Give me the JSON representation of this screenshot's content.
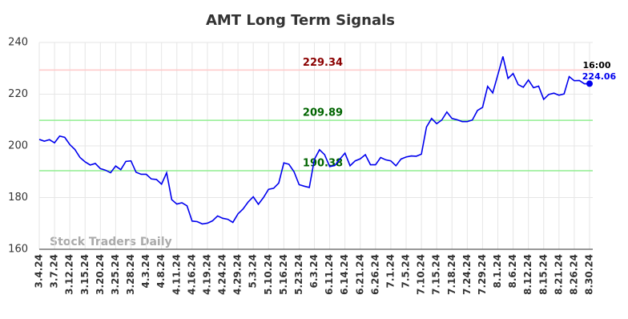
{
  "chart_data": {
    "type": "line",
    "title": "AMT Long Term Signals",
    "watermark": "Stock Traders Daily",
    "categories": [
      "3.4.24",
      null,
      null,
      "3.7.24",
      null,
      null,
      "3.12.24",
      null,
      null,
      "3.15.24",
      null,
      null,
      "3.20.24",
      null,
      null,
      "3.25.24",
      null,
      null,
      "3.28.24",
      null,
      null,
      "4.3.24",
      null,
      null,
      "4.8.24",
      null,
      null,
      "4.11.24",
      null,
      null,
      "4.16.24",
      null,
      null,
      "4.19.24",
      null,
      null,
      "4.24.24",
      null,
      null,
      "4.29.24",
      null,
      null,
      "5.3.24",
      null,
      null,
      "5.10.24",
      null,
      null,
      "5.16.24",
      null,
      null,
      "5.23.24",
      null,
      null,
      "6.3.24",
      null,
      null,
      "6.11.24",
      null,
      null,
      "6.14.24",
      null,
      null,
      "6.21.24",
      null,
      null,
      "6.26.24",
      null,
      null,
      "7.1.24",
      null,
      null,
      "7.5.24",
      null,
      null,
      "7.10.24",
      null,
      null,
      "7.15.24",
      null,
      null,
      "7.18.24",
      null,
      null,
      "7.24.24",
      null,
      null,
      "7.29.24",
      null,
      null,
      "8.1.24",
      null,
      null,
      "8.6.24",
      null,
      null,
      "8.12.24",
      null,
      null,
      "8.15.24",
      null,
      null,
      "8.21.24",
      null,
      null,
      "8.26.24",
      null,
      null,
      "8.30.24"
    ],
    "series": [
      {
        "name": "AMT",
        "color": "#0000ee",
        "values": [
          202.5,
          201.8,
          202.4,
          201.2,
          203.8,
          203.3,
          200.5,
          198.6,
          195.5,
          193.8,
          192.6,
          193.2,
          191.2,
          190.6,
          189.6,
          192.2,
          190.8,
          194.0,
          194.2,
          189.8,
          189.0,
          189.0,
          187.2,
          187.0,
          185.2,
          189.6,
          179.2,
          177.5,
          178.0,
          176.8,
          170.9,
          170.7,
          169.8,
          170.1,
          171.0,
          172.9,
          172.0,
          171.6,
          170.4,
          173.7,
          175.6,
          178.3,
          180.3,
          177.4,
          180.0,
          183.2,
          183.6,
          185.6,
          193.4,
          192.9,
          190.0,
          185.0,
          184.4,
          183.9,
          194.8,
          198.5,
          196.6,
          192.0,
          192.4,
          194.9,
          197.2,
          192.3,
          194.2,
          195.0,
          196.6,
          192.7,
          192.7,
          195.5,
          194.6,
          194.2,
          192.3,
          194.9,
          195.7,
          196.1,
          196.0,
          196.8,
          207.3,
          210.6,
          208.6,
          210.0,
          213.1,
          210.6,
          210.1,
          209.4,
          209.4,
          210.0,
          213.7,
          214.9,
          223.0,
          220.5,
          227.5,
          234.6,
          226.1,
          228.0,
          223.7,
          222.7,
          225.5,
          222.5,
          223.1,
          218.0,
          219.9,
          220.4,
          219.6,
          220.1,
          226.8,
          225.2,
          225.3,
          224.0,
          224.06
        ]
      }
    ],
    "last_time": "16:00",
    "reference_lines": [
      {
        "value": 229.34,
        "line_color": "#ffc8c8",
        "label_color": "#8b0000"
      },
      {
        "value": 209.89,
        "line_color": "#90ee90",
        "label_color": "#006400"
      },
      {
        "value": 190.38,
        "line_color": "#90ee90",
        "label_color": "#006400"
      }
    ],
    "ylim": [
      160,
      240
    ],
    "yticks": [
      160,
      180,
      200,
      220,
      240
    ],
    "grid": true
  }
}
